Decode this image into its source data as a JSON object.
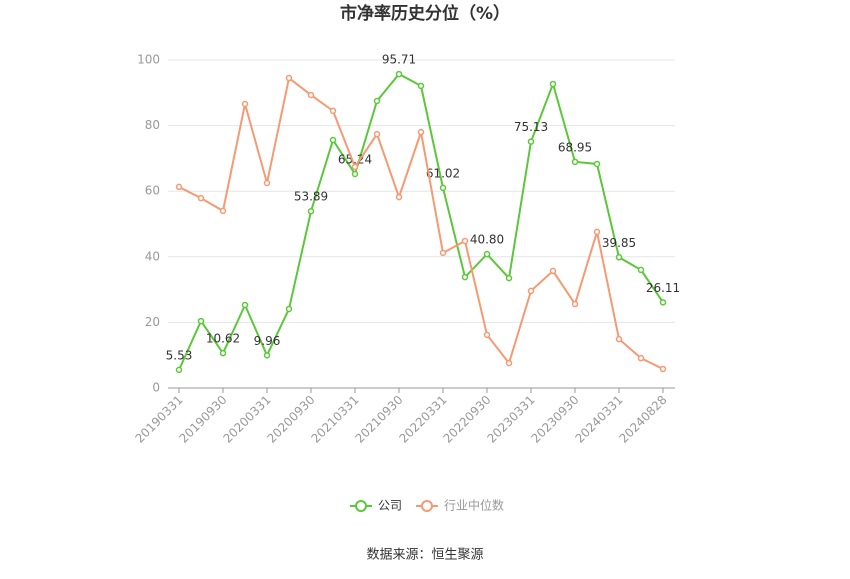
{
  "chart_data": {
    "type": "line",
    "title": "市净率历史分位（%）",
    "source": "数据来源：恒生聚源",
    "categories": [
      "20190331",
      null,
      "20190930",
      null,
      "20200331",
      null,
      "20200930",
      null,
      "20210331",
      null,
      "20210930",
      null,
      "20220331",
      null,
      "20220930",
      null,
      "20230331",
      null,
      "20230930",
      null,
      "20240331",
      null,
      "20240828"
    ],
    "series": [
      {
        "name": "公司",
        "color": "#5cc73a",
        "values": [
          5.53,
          20.4,
          10.62,
          25.3,
          9.96,
          24.1,
          53.89,
          75.6,
          65.24,
          87.5,
          95.71,
          92.1,
          61.02,
          33.8,
          40.8,
          33.5,
          75.13,
          92.7,
          68.95,
          68.3,
          39.85,
          36,
          26.11
        ],
        "value_labels": [
          "5.53",
          null,
          "10.62",
          null,
          "9.96",
          null,
          "53.89",
          null,
          "65.24",
          null,
          "95.71",
          null,
          "61.02",
          null,
          "40.80",
          null,
          "75.13",
          null,
          "68.95",
          null,
          "39.85",
          null,
          "26.11"
        ]
      },
      {
        "name": "行业中位数",
        "color": "#f59a73",
        "values": [
          61.3,
          57.9,
          54,
          86.6,
          62.5,
          94.5,
          89.3,
          84.5,
          67.4,
          77.4,
          58.2,
          78,
          41.2,
          44.8,
          16.2,
          7.6,
          29.6,
          35.7,
          25.6,
          47.6,
          14.9,
          9.1,
          5.8
        ]
      }
    ],
    "ylim": [
      0,
      100
    ],
    "yticks": [
      0,
      20,
      40,
      60,
      80,
      100
    ],
    "grid": true,
    "legend": "bottom"
  }
}
